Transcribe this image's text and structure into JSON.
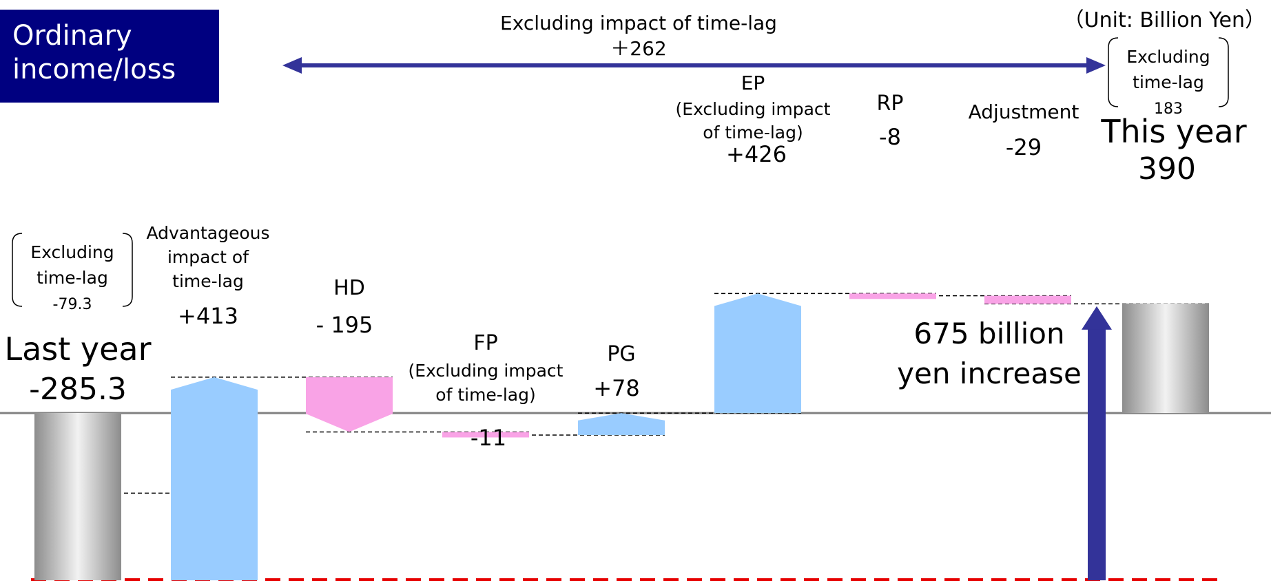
{
  "title_lines": [
    "Ordinary",
    "income/loss"
  ],
  "unit": "（Unit: Billion Yen）",
  "colors": {
    "title_bg": "#000080",
    "increase": "#99ccff",
    "decrease": "#f9a3e6",
    "arrow": "#333399",
    "highlight": "#e60000",
    "baseline": "#808080",
    "total_bar": "#b0b0b0"
  },
  "top_arrow": {
    "label_line1": "Excluding impact of time-lag",
    "label_line2": "＋262"
  },
  "bracket_left": [
    "Excluding",
    "time-lag",
    "-79.3"
  ],
  "bracket_right": [
    "Excluding",
    "time-lag",
    "183"
  ],
  "total_increase_label": [
    "675 billion",
    "yen increase"
  ],
  "chart_data": {
    "type": "waterfall",
    "unit": "Billion Yen",
    "steps": [
      {
        "key": "last_year",
        "kind": "total",
        "label_lines": [
          "Last year"
        ],
        "value_label": "-285.3",
        "value": -285.3
      },
      {
        "key": "timelag",
        "kind": "increase",
        "label_lines": [
          "Advantageous",
          "impact of",
          "time-lag"
        ],
        "value_label": "+413",
        "value": 413
      },
      {
        "key": "hd",
        "kind": "decrease",
        "label_lines": [
          "HD"
        ],
        "value_label": "- 195",
        "value": -195
      },
      {
        "key": "fp",
        "kind": "decrease",
        "label_lines": [
          "FP",
          "(Excluding impact",
          "of time-lag)"
        ],
        "value_label": "-11",
        "value": -11
      },
      {
        "key": "pg",
        "kind": "increase",
        "label_lines": [
          "PG"
        ],
        "value_label": "+78",
        "value": 78
      },
      {
        "key": "ep",
        "kind": "increase",
        "label_lines": [
          "EP",
          "(Excluding impact",
          "of time-lag)"
        ],
        "value_label": "+426",
        "value": 426
      },
      {
        "key": "rp",
        "kind": "decrease",
        "label_lines": [
          "RP"
        ],
        "value_label": "-8",
        "value": -8
      },
      {
        "key": "adj",
        "kind": "decrease",
        "label_lines": [
          "Adjustment"
        ],
        "value_label": "-29",
        "value": -29
      },
      {
        "key": "this_year",
        "kind": "total",
        "label_lines": [
          "This year"
        ],
        "value_label": "390",
        "value": 390
      }
    ]
  }
}
